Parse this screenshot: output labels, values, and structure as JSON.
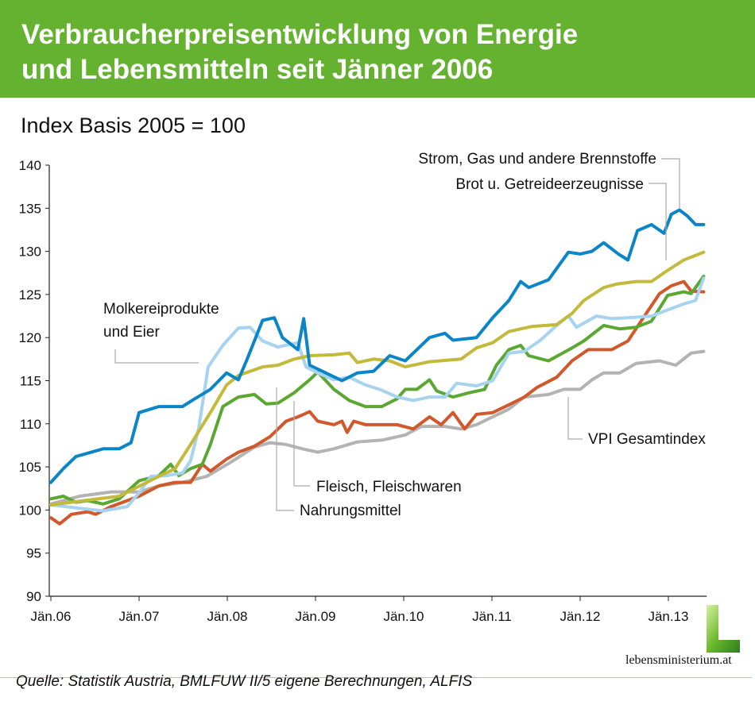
{
  "header": {
    "title_line1": "Verbraucherpreisentwicklung von Energie",
    "title_line2": "und Lebensmitteln seit Jänner 2006"
  },
  "footer": {
    "source": "Quelle: Statistik Austria, BMLFUW II/5 eigene Berechnungen, ALFIS",
    "logo_text": "lebensministerium.at"
  },
  "chart_data": {
    "type": "line",
    "title": "Verbraucherpreisentwicklung von Energie und Lebensmitteln seit Jänner 2006",
    "ylabel": "Index Basis 2005 = 100",
    "xlabel": "",
    "ylim": [
      90,
      140
    ],
    "yticks": [
      90,
      95,
      100,
      105,
      110,
      115,
      120,
      125,
      130,
      135,
      140
    ],
    "xlim_months": [
      0,
      89
    ],
    "xticks": [
      {
        "label": "Jän.06",
        "month": 0
      },
      {
        "label": "Jän.07",
        "month": 12
      },
      {
        "label": "Jän.08",
        "month": 24
      },
      {
        "label": "Jän.09",
        "month": 36
      },
      {
        "label": "Jän.10",
        "month": 48
      },
      {
        "label": "Jän.11",
        "month": 60
      },
      {
        "label": "Jän.12",
        "month": 72
      },
      {
        "label": "Jän.13",
        "month": 84
      }
    ],
    "grid": false,
    "series": [
      {
        "name": "VPI Gesamtindex",
        "color": "#b3b3b3",
        "points": [
          [
            0,
            100.7
          ],
          [
            3.9,
            101.6
          ],
          [
            8.2,
            102.1
          ],
          [
            12,
            102.1
          ],
          [
            14.7,
            102.8
          ],
          [
            17.9,
            103.2
          ],
          [
            21.2,
            103.9
          ],
          [
            24.4,
            105.5
          ],
          [
            27.7,
            107.3
          ],
          [
            29.8,
            107.8
          ],
          [
            32,
            107.6
          ],
          [
            34.2,
            107.1
          ],
          [
            36.3,
            106.7
          ],
          [
            38.5,
            107.1
          ],
          [
            41.7,
            107.9
          ],
          [
            45,
            108.1
          ],
          [
            48.2,
            108.7
          ],
          [
            50.4,
            109.7
          ],
          [
            53.6,
            109.7
          ],
          [
            55.8,
            109.4
          ],
          [
            57.9,
            109.9
          ],
          [
            60.1,
            110.8
          ],
          [
            62.3,
            111.7
          ],
          [
            64.4,
            113.1
          ],
          [
            67.7,
            113.4
          ],
          [
            69.8,
            114
          ],
          [
            72,
            114
          ],
          [
            73.6,
            115.1
          ],
          [
            75.2,
            115.9
          ],
          [
            77.4,
            115.9
          ],
          [
            79.6,
            117
          ],
          [
            82.8,
            117.3
          ],
          [
            85,
            116.8
          ],
          [
            87.1,
            118.2
          ],
          [
            88.8,
            118.4
          ]
        ]
      },
      {
        "name": "Nahrungsmittel",
        "color": "#d0582a",
        "points": [
          [
            0,
            99.1
          ],
          [
            1.2,
            98.4
          ],
          [
            2.8,
            99.5
          ],
          [
            5,
            99.8
          ],
          [
            6.1,
            99.5
          ],
          [
            8.2,
            100.4
          ],
          [
            12,
            101.6
          ],
          [
            14.7,
            102.8
          ],
          [
            16.9,
            103.2
          ],
          [
            19,
            103.2
          ],
          [
            20.6,
            105.3
          ],
          [
            21.7,
            104.5
          ],
          [
            23.9,
            105.9
          ],
          [
            25.5,
            106.7
          ],
          [
            27.7,
            107.4
          ],
          [
            29.8,
            108.5
          ],
          [
            32,
            110.3
          ],
          [
            33.6,
            110.8
          ],
          [
            35.2,
            111.4
          ],
          [
            36.3,
            110.3
          ],
          [
            38.5,
            109.9
          ],
          [
            39.6,
            110.3
          ],
          [
            40.3,
            109
          ],
          [
            41.2,
            110.3
          ],
          [
            42.8,
            109.9
          ],
          [
            47.1,
            109.9
          ],
          [
            49.3,
            109.4
          ],
          [
            51.5,
            110.8
          ],
          [
            53.1,
            109.9
          ],
          [
            54.7,
            111.3
          ],
          [
            56.3,
            109.4
          ],
          [
            57.9,
            111.1
          ],
          [
            60.1,
            111.3
          ],
          [
            62.3,
            112.2
          ],
          [
            64.4,
            113.1
          ],
          [
            66.1,
            114.2
          ],
          [
            68.8,
            115.4
          ],
          [
            70.9,
            117.3
          ],
          [
            73.1,
            118.6
          ],
          [
            76.3,
            118.6
          ],
          [
            78.5,
            119.6
          ],
          [
            80.6,
            122.3
          ],
          [
            82.8,
            125.1
          ],
          [
            84.4,
            126
          ],
          [
            86.1,
            126.5
          ],
          [
            87.1,
            125.4
          ],
          [
            88.8,
            125.3
          ]
        ]
      },
      {
        "name": "Fleisch, Fleischwaren",
        "color": "#5aa832",
        "points": [
          [
            0,
            101.3
          ],
          [
            1.7,
            101.6
          ],
          [
            3.4,
            100.9
          ],
          [
            5,
            101.1
          ],
          [
            7.1,
            100.7
          ],
          [
            9.3,
            101.3
          ],
          [
            12,
            103.4
          ],
          [
            14.7,
            104
          ],
          [
            16.3,
            105.3
          ],
          [
            17.4,
            104
          ],
          [
            19,
            104.8
          ],
          [
            20.6,
            105.3
          ],
          [
            21.7,
            107.6
          ],
          [
            23.4,
            112
          ],
          [
            25.5,
            113.1
          ],
          [
            27.7,
            113.4
          ],
          [
            29.3,
            112.3
          ],
          [
            30.9,
            112.4
          ],
          [
            33.1,
            113.6
          ],
          [
            35.2,
            115.1
          ],
          [
            36.3,
            116
          ],
          [
            38.5,
            114
          ],
          [
            40.6,
            112.7
          ],
          [
            42.8,
            112
          ],
          [
            45,
            112
          ],
          [
            47.1,
            112.9
          ],
          [
            48.2,
            114
          ],
          [
            49.8,
            114
          ],
          [
            51.5,
            115.1
          ],
          [
            52.5,
            113.8
          ],
          [
            54.7,
            113.1
          ],
          [
            56.9,
            113.6
          ],
          [
            59,
            114
          ],
          [
            60.6,
            116.8
          ],
          [
            62.3,
            118.6
          ],
          [
            63.9,
            119.1
          ],
          [
            65,
            117.9
          ],
          [
            67.7,
            117.3
          ],
          [
            70.9,
            118.8
          ],
          [
            72.5,
            119.6
          ],
          [
            75.2,
            121.4
          ],
          [
            77.4,
            121
          ],
          [
            79.6,
            121.2
          ],
          [
            81.7,
            121.9
          ],
          [
            83.9,
            124.9
          ],
          [
            86.1,
            125.3
          ],
          [
            87.1,
            125.1
          ],
          [
            88.8,
            127.1
          ]
        ]
      },
      {
        "name": "Molkereiprodukte und Eier",
        "color": "#a6d3f0",
        "points": [
          [
            0,
            100.6
          ],
          [
            3.9,
            100.2
          ],
          [
            7.1,
            99.9
          ],
          [
            10.4,
            100.4
          ],
          [
            12,
            102
          ],
          [
            13.6,
            103.9
          ],
          [
            15.8,
            104
          ],
          [
            17.9,
            104.3
          ],
          [
            19,
            105.7
          ],
          [
            20.1,
            109.4
          ],
          [
            21.4,
            116.6
          ],
          [
            23.4,
            119.1
          ],
          [
            25.5,
            121.1
          ],
          [
            27.1,
            121.2
          ],
          [
            28.8,
            119.6
          ],
          [
            30.9,
            118.9
          ],
          [
            33.6,
            119.4
          ],
          [
            34.7,
            116.6
          ],
          [
            36.3,
            115.9
          ],
          [
            38.5,
            115.1
          ],
          [
            40.6,
            115.4
          ],
          [
            42.8,
            114.5
          ],
          [
            45,
            113.9
          ],
          [
            47.1,
            113.1
          ],
          [
            49.3,
            112.7
          ],
          [
            51.5,
            113.1
          ],
          [
            53.6,
            113.1
          ],
          [
            55.2,
            114.7
          ],
          [
            57.9,
            114.4
          ],
          [
            60.1,
            115
          ],
          [
            62.3,
            118.2
          ],
          [
            64.4,
            118.4
          ],
          [
            66.6,
            119.7
          ],
          [
            68.8,
            121.4
          ],
          [
            70.4,
            122.5
          ],
          [
            71.5,
            121.2
          ],
          [
            74.2,
            122.5
          ],
          [
            76.3,
            122.2
          ],
          [
            78.5,
            122.3
          ],
          [
            81.7,
            122.5
          ],
          [
            83.9,
            123.2
          ],
          [
            86.1,
            123.9
          ],
          [
            87.7,
            124.3
          ],
          [
            88.8,
            126.9
          ]
        ]
      },
      {
        "name": "Brot u. Getreideerzeugnisse",
        "color": "#c3b93a",
        "points": [
          [
            0,
            100.6
          ],
          [
            9.3,
            101.6
          ],
          [
            14.7,
            103.9
          ],
          [
            16.9,
            104.8
          ],
          [
            19,
            107.6
          ],
          [
            21.7,
            111.3
          ],
          [
            23.9,
            114.5
          ],
          [
            25.5,
            115.6
          ],
          [
            28.8,
            116.6
          ],
          [
            30.9,
            116.8
          ],
          [
            33.1,
            117.5
          ],
          [
            35.2,
            117.9
          ],
          [
            38.5,
            118
          ],
          [
            40.6,
            118.2
          ],
          [
            41.7,
            117.1
          ],
          [
            43.9,
            117.5
          ],
          [
            46.1,
            117.3
          ],
          [
            48.2,
            116.6
          ],
          [
            51.5,
            117.2
          ],
          [
            55.8,
            117.5
          ],
          [
            57.9,
            118.8
          ],
          [
            60.1,
            119.4
          ],
          [
            62.3,
            120.7
          ],
          [
            65.5,
            121.3
          ],
          [
            68.8,
            121.5
          ],
          [
            70.9,
            122.8
          ],
          [
            72.5,
            124.3
          ],
          [
            75.2,
            125.8
          ],
          [
            76.9,
            126.2
          ],
          [
            79.6,
            126.5
          ],
          [
            81.7,
            126.5
          ],
          [
            83.9,
            127.8
          ],
          [
            86.1,
            129
          ],
          [
            88.8,
            129.9
          ]
        ]
      },
      {
        "name": "Strom, Gas und andere Brennstoffe",
        "color": "#0a86c8",
        "points": [
          [
            0,
            103.2
          ],
          [
            1.7,
            104.8
          ],
          [
            3.4,
            106.2
          ],
          [
            7.1,
            107.1
          ],
          [
            9.3,
            107.1
          ],
          [
            10.9,
            107.8
          ],
          [
            12,
            111.3
          ],
          [
            14.7,
            112
          ],
          [
            17.9,
            112
          ],
          [
            19,
            112.6
          ],
          [
            21.7,
            114
          ],
          [
            23.9,
            115.9
          ],
          [
            25.5,
            115.1
          ],
          [
            26.6,
            117.3
          ],
          [
            28.8,
            122
          ],
          [
            30.4,
            122.3
          ],
          [
            31.5,
            120
          ],
          [
            33.6,
            118.6
          ],
          [
            34.4,
            122.2
          ],
          [
            35.2,
            116.8
          ],
          [
            37.4,
            115.9
          ],
          [
            39.6,
            115
          ],
          [
            41.7,
            115.9
          ],
          [
            43.9,
            116.1
          ],
          [
            46.1,
            117.9
          ],
          [
            48.2,
            117.3
          ],
          [
            51.5,
            120
          ],
          [
            53.6,
            120.5
          ],
          [
            54.7,
            119.7
          ],
          [
            57.9,
            120
          ],
          [
            60.1,
            122.3
          ],
          [
            62.3,
            124.3
          ],
          [
            63.9,
            126.5
          ],
          [
            65,
            125.8
          ],
          [
            67.7,
            126.7
          ],
          [
            70.4,
            129.9
          ],
          [
            72,
            129.7
          ],
          [
            73.6,
            130
          ],
          [
            75.2,
            131
          ],
          [
            77.2,
            129.7
          ],
          [
            78.5,
            129
          ],
          [
            79.8,
            132.4
          ],
          [
            81.7,
            133.1
          ],
          [
            83.4,
            132.1
          ],
          [
            84.4,
            134.3
          ],
          [
            85.5,
            134.8
          ],
          [
            86.6,
            134.1
          ],
          [
            87.7,
            133.1
          ],
          [
            88.8,
            133.1
          ]
        ]
      }
    ]
  }
}
